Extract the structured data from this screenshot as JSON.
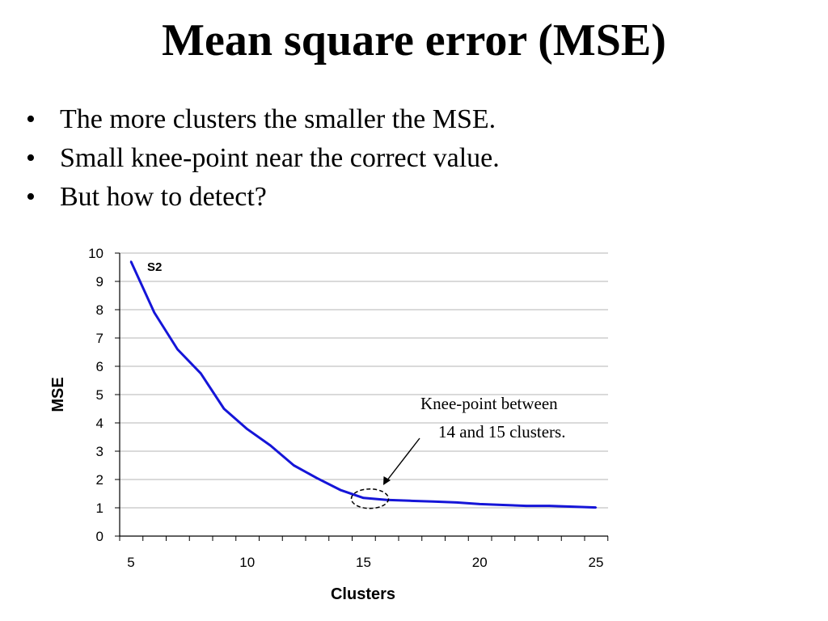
{
  "slide": {
    "title": "Mean square error (MSE)",
    "bullet_symbol": "•",
    "bullets": [
      "The more clusters the smaller the MSE.",
      "Small knee-point near the correct value.",
      "But how to detect?"
    ]
  },
  "chart_data": {
    "type": "line",
    "title": "",
    "xlabel": "Clusters",
    "ylabel": "MSE",
    "xlim": [
      5,
      25
    ],
    "ylim": [
      0,
      10
    ],
    "x_ticks": [
      5,
      10,
      15,
      20,
      25
    ],
    "y_ticks": [
      0,
      1,
      2,
      3,
      4,
      5,
      6,
      7,
      8,
      9,
      10
    ],
    "grid": "horizontal",
    "series": [
      {
        "name": "S2",
        "color": "#1515d8",
        "x": [
          5,
          6,
          7,
          8,
          9,
          10,
          11,
          12,
          13,
          14,
          15,
          16,
          17,
          18,
          19,
          20,
          21,
          22,
          23,
          24,
          25
        ],
        "y": [
          9.7,
          7.9,
          6.6,
          5.75,
          4.5,
          3.78,
          3.2,
          2.5,
          2.05,
          1.63,
          1.35,
          1.28,
          1.25,
          1.22,
          1.19,
          1.13,
          1.1,
          1.07,
          1.07,
          1.04,
          1.01
        ]
      }
    ],
    "annotation": {
      "lines": [
        "Knee-point between",
        "14 and 15 clusters."
      ],
      "highlight_x": 15,
      "highlight_y": 1.35
    }
  }
}
